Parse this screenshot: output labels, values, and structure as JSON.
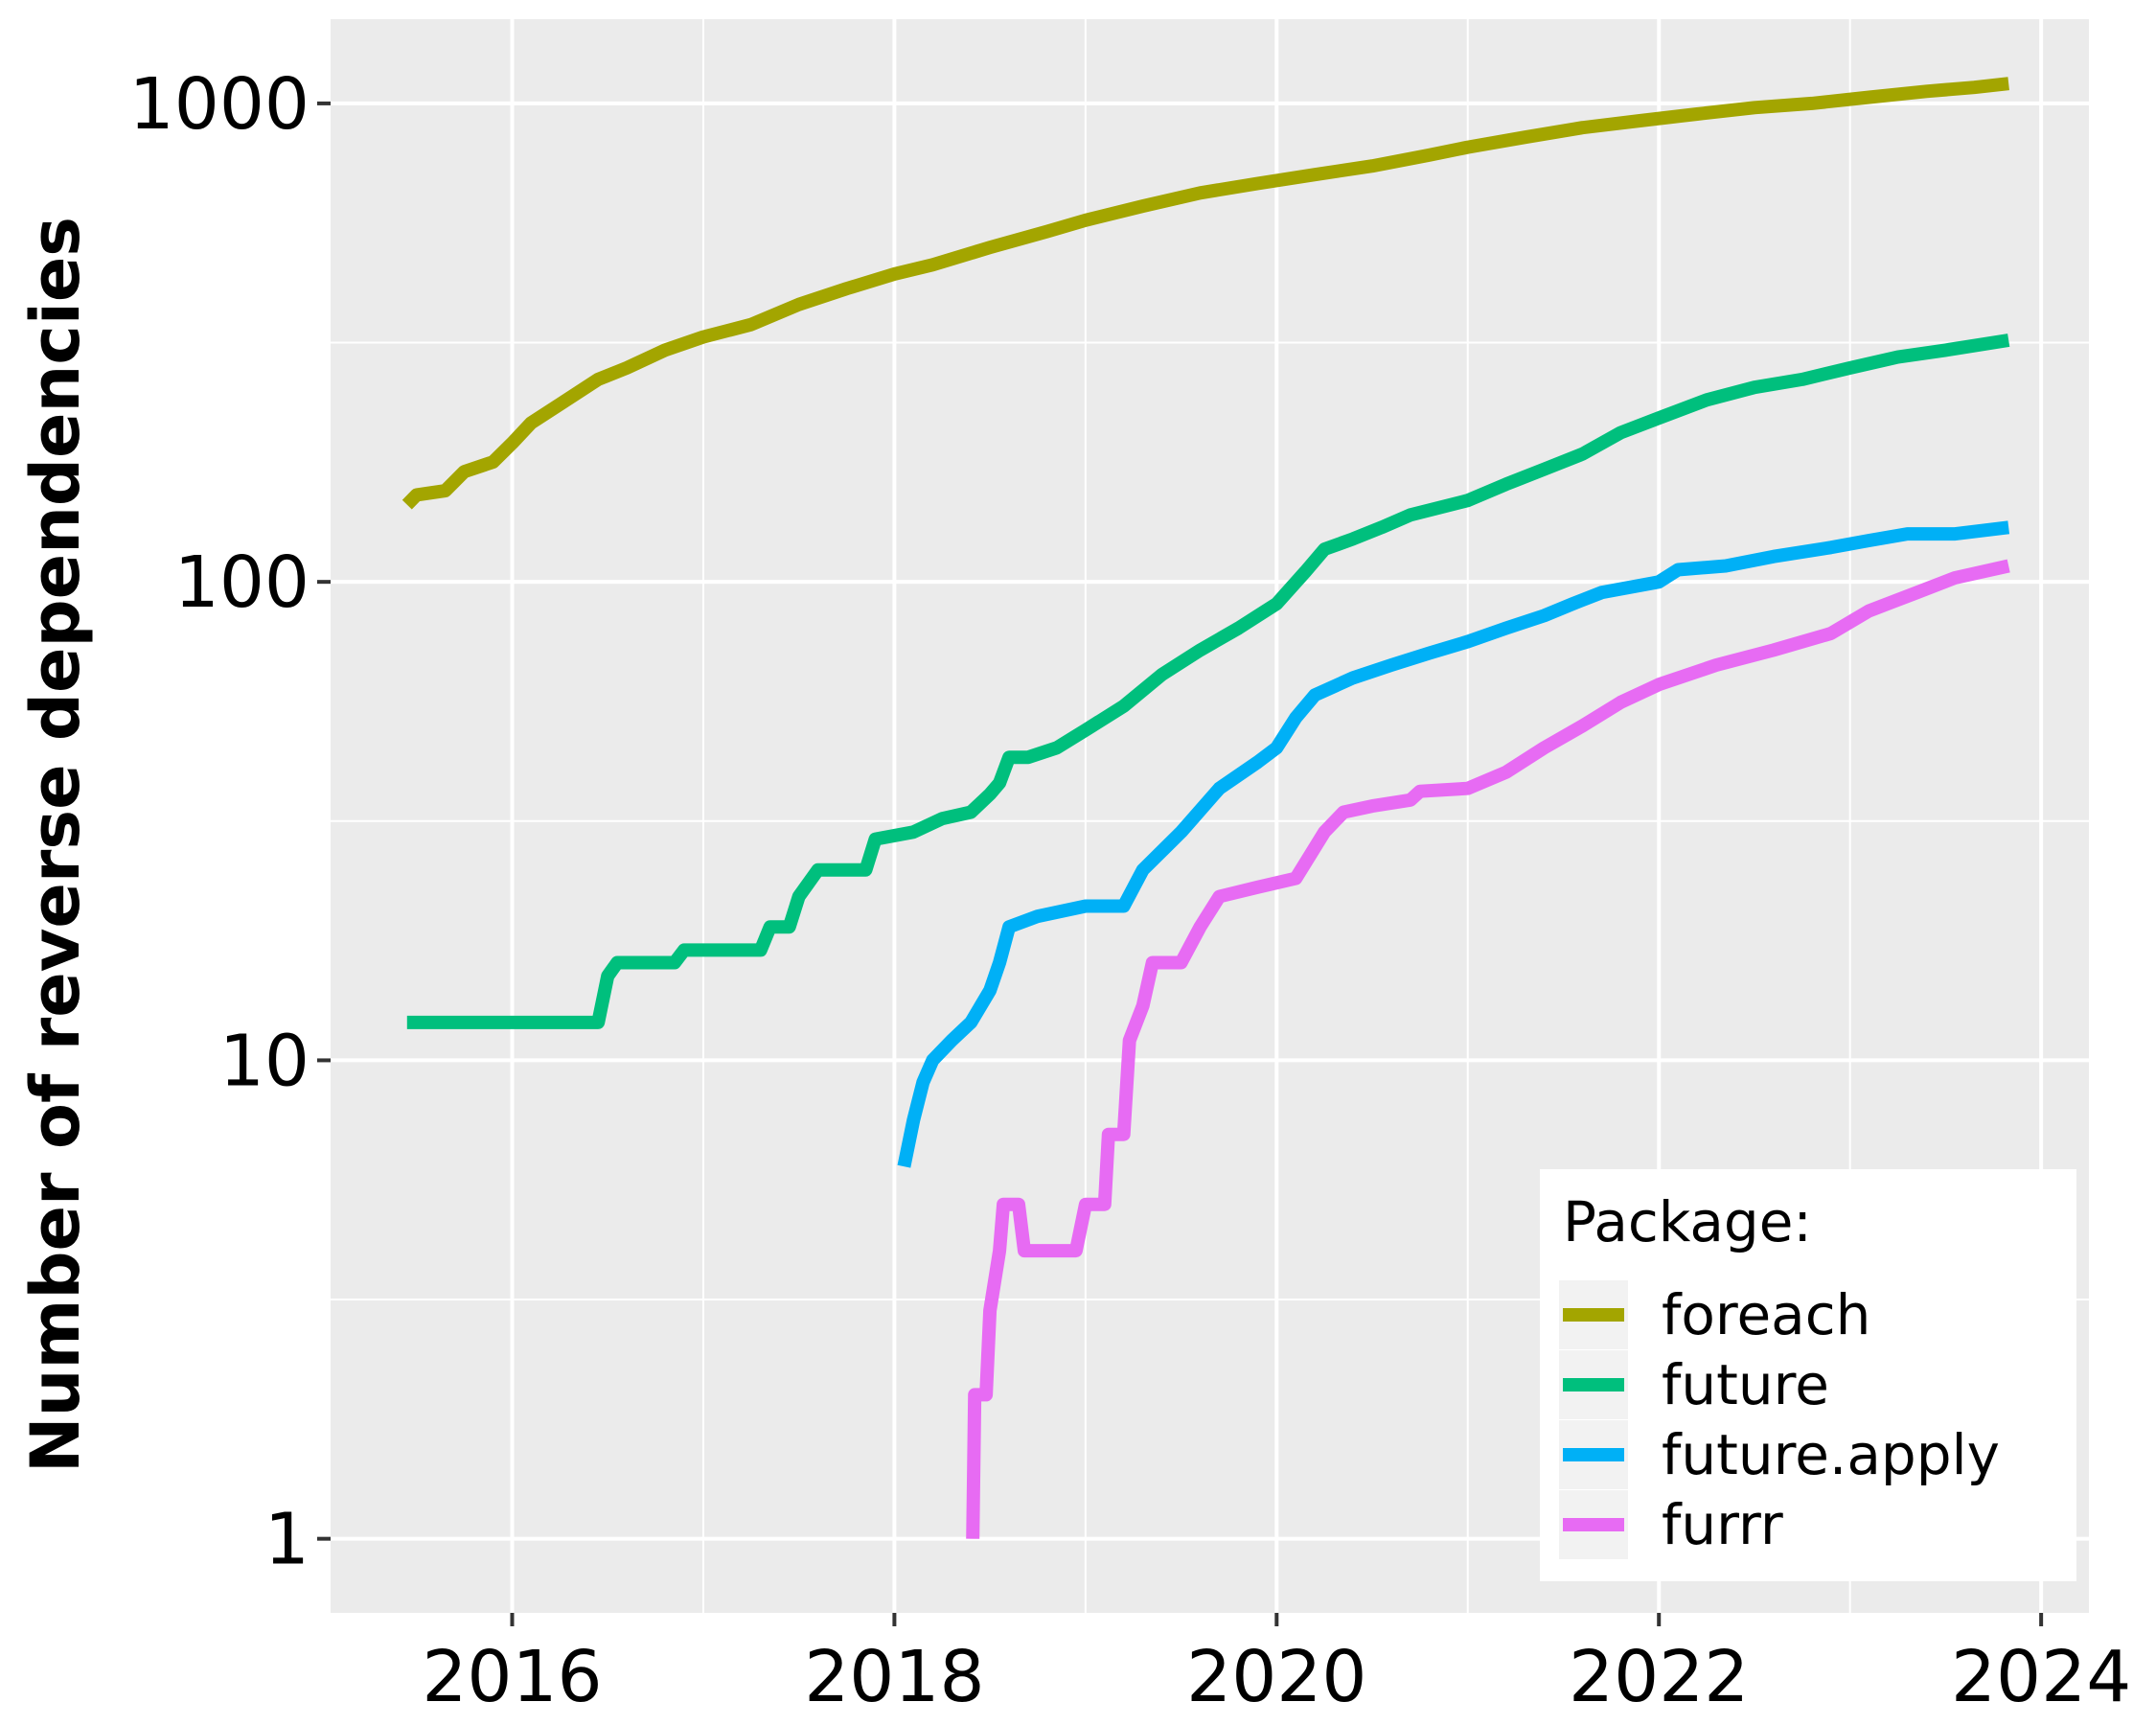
{
  "chart_data": {
    "type": "line",
    "title": "",
    "xlabel": "",
    "ylabel": "Number of reverse dependencies",
    "y_scale": "log10",
    "ylim": [
      0.7,
      1500
    ],
    "xlim": [
      2015.05,
      2024.25
    ],
    "x_ticks": [
      {
        "value": 2016,
        "label": "2016"
      },
      {
        "value": 2018,
        "label": "2018"
      },
      {
        "value": 2020,
        "label": "2020"
      },
      {
        "value": 2022,
        "label": "2022"
      },
      {
        "value": 2024,
        "label": "2024"
      }
    ],
    "y_ticks": [
      {
        "value": 1,
        "label": "1"
      },
      {
        "value": 10,
        "label": "10"
      },
      {
        "value": 100,
        "label": "100"
      },
      {
        "value": 1000,
        "label": "1000"
      }
    ],
    "grid": true,
    "background": "#ebebeb",
    "legend": {
      "title": "Package:",
      "position": "bottom-right"
    },
    "series": [
      {
        "name": "foreach",
        "color": "#a3a500",
        "points": [
          [
            2015.45,
            145
          ],
          [
            2015.5,
            152
          ],
          [
            2015.65,
            155
          ],
          [
            2015.75,
            170
          ],
          [
            2015.9,
            178
          ],
          [
            2016.0,
            195
          ],
          [
            2016.1,
            215
          ],
          [
            2016.25,
            235
          ],
          [
            2016.45,
            265
          ],
          [
            2016.6,
            280
          ],
          [
            2016.8,
            305
          ],
          [
            2017.0,
            325
          ],
          [
            2017.25,
            345
          ],
          [
            2017.5,
            380
          ],
          [
            2017.75,
            410
          ],
          [
            2018.0,
            440
          ],
          [
            2018.2,
            460
          ],
          [
            2018.5,
            500
          ],
          [
            2018.8,
            540
          ],
          [
            2019.0,
            570
          ],
          [
            2019.3,
            610
          ],
          [
            2019.6,
            650
          ],
          [
            2019.9,
            680
          ],
          [
            2020.2,
            710
          ],
          [
            2020.5,
            740
          ],
          [
            2020.8,
            780
          ],
          [
            2021.0,
            810
          ],
          [
            2021.3,
            850
          ],
          [
            2021.6,
            890
          ],
          [
            2021.9,
            920
          ],
          [
            2022.2,
            950
          ],
          [
            2022.5,
            980
          ],
          [
            2022.8,
            1000
          ],
          [
            2023.1,
            1030
          ],
          [
            2023.4,
            1060
          ],
          [
            2023.65,
            1080
          ],
          [
            2023.83,
            1100
          ]
        ]
      },
      {
        "name": "future",
        "color": "#00bf7d",
        "points": [
          [
            2015.45,
            12
          ],
          [
            2016.45,
            12
          ],
          [
            2016.5,
            15
          ],
          [
            2016.55,
            16
          ],
          [
            2016.85,
            16
          ],
          [
            2016.9,
            17
          ],
          [
            2017.3,
            17
          ],
          [
            2017.35,
            19
          ],
          [
            2017.45,
            19
          ],
          [
            2017.5,
            22
          ],
          [
            2017.6,
            25
          ],
          [
            2017.85,
            25
          ],
          [
            2017.9,
            29
          ],
          [
            2018.1,
            30
          ],
          [
            2018.25,
            32
          ],
          [
            2018.4,
            33
          ],
          [
            2018.5,
            36
          ],
          [
            2018.55,
            38
          ],
          [
            2018.6,
            43
          ],
          [
            2018.7,
            43
          ],
          [
            2018.85,
            45
          ],
          [
            2019.0,
            49
          ],
          [
            2019.2,
            55
          ],
          [
            2019.4,
            64
          ],
          [
            2019.6,
            72
          ],
          [
            2019.8,
            80
          ],
          [
            2020.0,
            90
          ],
          [
            2020.15,
            105
          ],
          [
            2020.25,
            117
          ],
          [
            2020.4,
            123
          ],
          [
            2020.55,
            130
          ],
          [
            2020.7,
            138
          ],
          [
            2021.0,
            148
          ],
          [
            2021.2,
            160
          ],
          [
            2021.4,
            172
          ],
          [
            2021.6,
            185
          ],
          [
            2021.8,
            205
          ],
          [
            2022.0,
            220
          ],
          [
            2022.25,
            240
          ],
          [
            2022.5,
            255
          ],
          [
            2022.75,
            265
          ],
          [
            2023.0,
            280
          ],
          [
            2023.25,
            295
          ],
          [
            2023.5,
            305
          ],
          [
            2023.83,
            320
          ]
        ]
      },
      {
        "name": "future.apply",
        "color": "#00b0f6",
        "points": [
          [
            2018.05,
            6
          ],
          [
            2018.1,
            7.5
          ],
          [
            2018.15,
            9
          ],
          [
            2018.2,
            10
          ],
          [
            2018.3,
            11
          ],
          [
            2018.4,
            12
          ],
          [
            2018.5,
            14
          ],
          [
            2018.55,
            16
          ],
          [
            2018.6,
            19
          ],
          [
            2018.75,
            20
          ],
          [
            2019.0,
            21
          ],
          [
            2019.2,
            21
          ],
          [
            2019.3,
            25
          ],
          [
            2019.5,
            30
          ],
          [
            2019.7,
            37
          ],
          [
            2019.9,
            42
          ],
          [
            2020.0,
            45
          ],
          [
            2020.1,
            52
          ],
          [
            2020.2,
            58
          ],
          [
            2020.4,
            63
          ],
          [
            2020.6,
            67
          ],
          [
            2020.8,
            71
          ],
          [
            2021.0,
            75
          ],
          [
            2021.2,
            80
          ],
          [
            2021.4,
            85
          ],
          [
            2021.55,
            90
          ],
          [
            2021.7,
            95
          ],
          [
            2022.0,
            100
          ],
          [
            2022.1,
            106
          ],
          [
            2022.35,
            108
          ],
          [
            2022.6,
            113
          ],
          [
            2022.9,
            118
          ],
          [
            2023.1,
            122
          ],
          [
            2023.3,
            126
          ],
          [
            2023.55,
            126
          ],
          [
            2023.83,
            130
          ]
        ]
      },
      {
        "name": "furrr",
        "color": "#e76bf3",
        "points": [
          [
            2018.41,
            1
          ],
          [
            2018.42,
            2
          ],
          [
            2018.48,
            2
          ],
          [
            2018.5,
            3
          ],
          [
            2018.55,
            4
          ],
          [
            2018.57,
            5
          ],
          [
            2018.65,
            5
          ],
          [
            2018.68,
            4
          ],
          [
            2018.95,
            4
          ],
          [
            2019.0,
            5
          ],
          [
            2019.1,
            5
          ],
          [
            2019.12,
            7
          ],
          [
            2019.2,
            7
          ],
          [
            2019.23,
            11
          ],
          [
            2019.3,
            13
          ],
          [
            2019.35,
            16
          ],
          [
            2019.5,
            16
          ],
          [
            2019.6,
            19
          ],
          [
            2019.7,
            22
          ],
          [
            2019.9,
            23
          ],
          [
            2020.1,
            24
          ],
          [
            2020.25,
            30
          ],
          [
            2020.35,
            33
          ],
          [
            2020.5,
            34
          ],
          [
            2020.7,
            35
          ],
          [
            2020.75,
            36.5
          ],
          [
            2021.0,
            37
          ],
          [
            2021.2,
            40
          ],
          [
            2021.4,
            45
          ],
          [
            2021.6,
            50
          ],
          [
            2021.8,
            56
          ],
          [
            2022.0,
            61
          ],
          [
            2022.3,
            67
          ],
          [
            2022.6,
            72
          ],
          [
            2022.9,
            78
          ],
          [
            2023.1,
            87
          ],
          [
            2023.35,
            95
          ],
          [
            2023.55,
            102
          ],
          [
            2023.83,
            108
          ]
        ]
      }
    ]
  }
}
